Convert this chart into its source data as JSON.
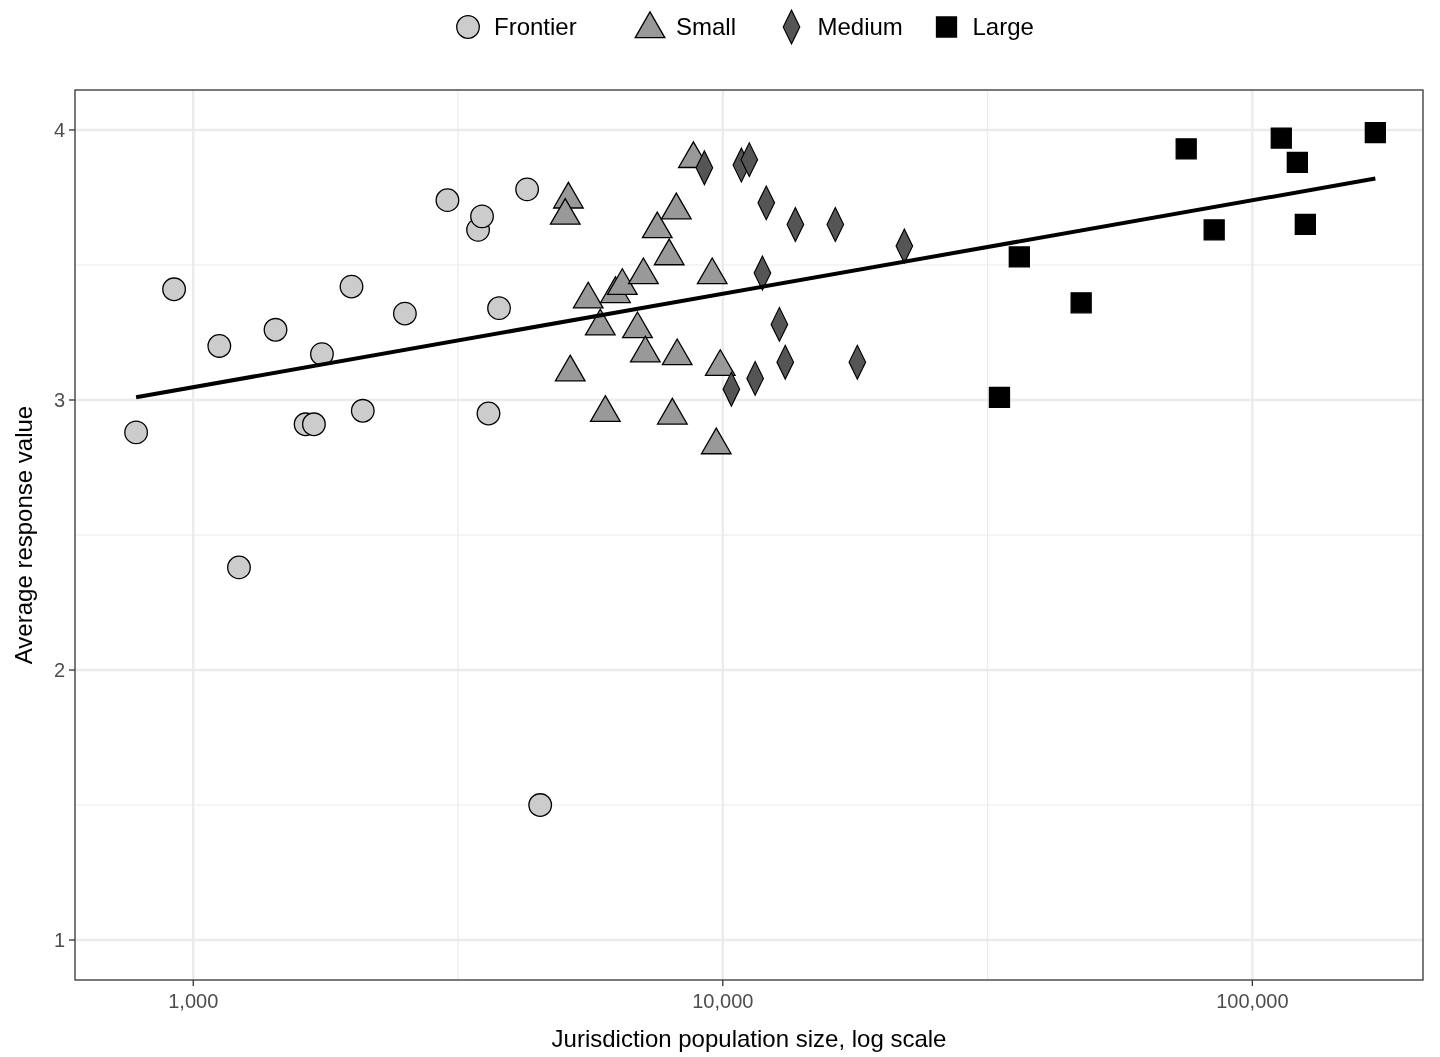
{
  "chart_data": {
    "type": "scatter",
    "xlabel": "Jurisdiction population size, log scale",
    "ylabel": "Average response value",
    "log": "x",
    "grid": true,
    "legend": "top",
    "xlim": [
      598,
      210000
    ],
    "ylim": [
      0.852,
      4.148
    ],
    "xticks": [
      {
        "value": 1000,
        "label": "1,000"
      },
      {
        "value": 3162,
        "label": null
      },
      {
        "value": 10000,
        "label": "10,000"
      },
      {
        "value": 31623,
        "label": null
      },
      {
        "value": 100000,
        "label": "100,000"
      }
    ],
    "yticks": [
      1,
      {
        "value": 1.5,
        "label": null
      },
      2,
      {
        "value": 2.5,
        "label": null
      },
      3,
      {
        "value": 3.5,
        "label": null
      },
      4
    ],
    "series": [
      {
        "name": "Frontier",
        "color": "#cccccc",
        "marker": "circle",
        "x": [
          780,
          920,
          1120,
          1220,
          1430,
          1630,
          1690,
          1750,
          1990,
          2090,
          2510,
          3020,
          3450,
          3510,
          3610,
          3780,
          4270,
          4520
        ],
        "values": [
          2.88,
          3.41,
          3.2,
          2.38,
          3.26,
          2.91,
          2.91,
          3.17,
          3.42,
          2.96,
          3.32,
          3.74,
          3.63,
          3.68,
          2.95,
          3.34,
          3.78,
          1.5
        ]
      },
      {
        "name": "Small",
        "color": "#999999",
        "marker": "triangle",
        "x": [
          5110,
          5040,
          5150,
          5570,
          5870,
          6000,
          6270,
          6460,
          6900,
          7080,
          7140,
          7520,
          7920,
          8030,
          8170,
          8200,
          8800,
          9720,
          9550,
          9890
        ],
        "values": [
          3.75,
          3.69,
          3.11,
          3.38,
          3.28,
          2.96,
          3.4,
          3.43,
          3.27,
          3.47,
          3.18,
          3.64,
          3.54,
          2.95,
          3.71,
          3.17,
          3.9,
          2.84,
          3.47,
          3.13
        ]
      },
      {
        "name": "Medium",
        "color": "#555555",
        "marker": "diamond",
        "x": [
          9230,
          10840,
          11220,
          10380,
          11510,
          11880,
          12080,
          12790,
          13120,
          13710,
          16310,
          17950,
          22020
        ],
        "values": [
          3.86,
          3.87,
          3.89,
          3.04,
          3.08,
          3.47,
          3.73,
          3.28,
          3.14,
          3.65,
          3.65,
          3.14,
          3.57
        ]
      },
      {
        "name": "Large",
        "color": "#000000",
        "marker": "square",
        "x": [
          33300,
          36300,
          47500,
          75000,
          84700,
          113400,
          121600,
          125900,
          170700
        ],
        "values": [
          3.01,
          3.53,
          3.36,
          3.93,
          3.63,
          3.97,
          3.88,
          3.65,
          3.99
        ]
      },
      {
        "type": "line",
        "color": "#000000",
        "marker": "none",
        "x": [
          780,
          170700
        ],
        "values": [
          3.01,
          3.82
        ]
      }
    ]
  }
}
